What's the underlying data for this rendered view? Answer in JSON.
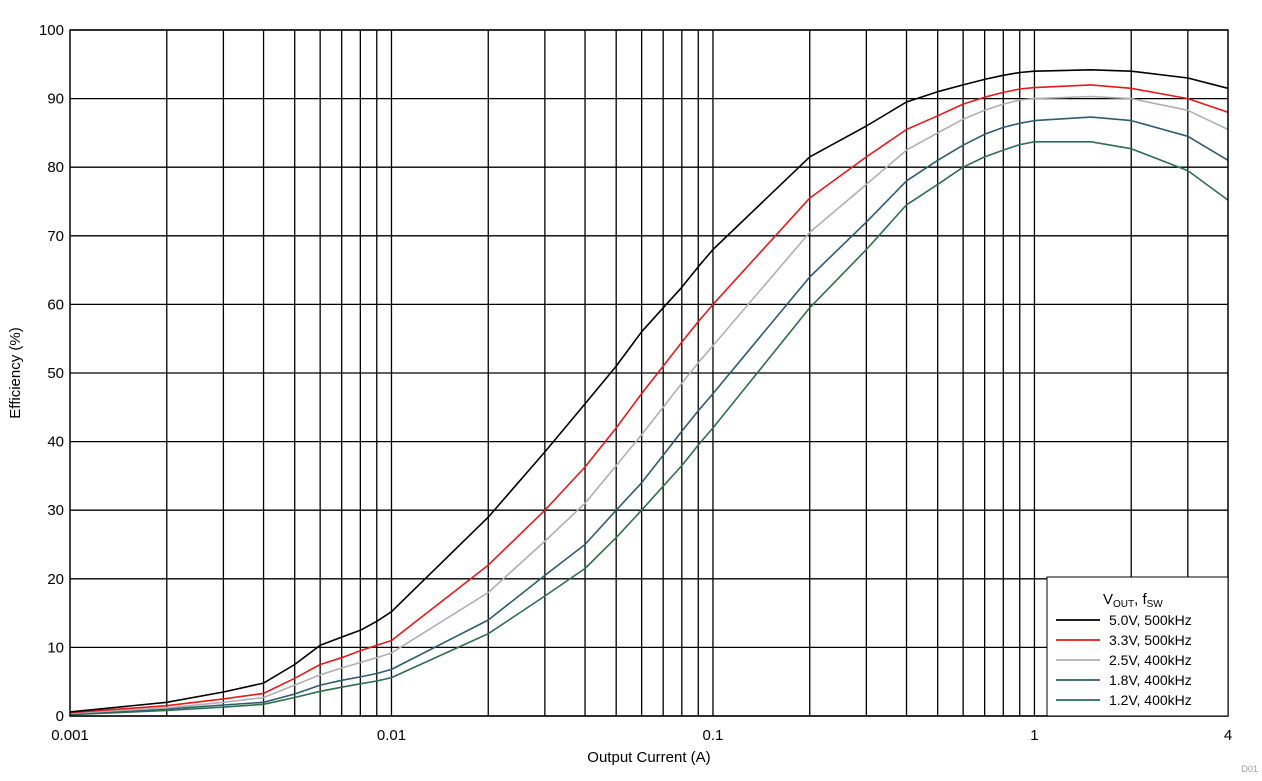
{
  "chart_data": {
    "type": "line",
    "title": "",
    "xlabel": "Output Current (A)",
    "ylabel": "Efficiency (%)",
    "x_scale": "log",
    "xlim": [
      0.001,
      4
    ],
    "ylim": [
      0,
      100
    ],
    "grid": true,
    "x_tick_labels": [
      {
        "value": 0.001,
        "label": "0.001"
      },
      {
        "value": 0.01,
        "label": "0.01"
      },
      {
        "value": 0.1,
        "label": "0.1"
      },
      {
        "value": 1,
        "label": "1"
      },
      {
        "value": 4,
        "label": "4"
      }
    ],
    "x_gridlines": [
      0.002,
      0.003,
      0.004,
      0.005,
      0.006,
      0.007,
      0.008,
      0.009,
      0.01,
      0.02,
      0.03,
      0.04,
      0.05,
      0.06,
      0.07,
      0.08,
      0.09,
      0.1,
      0.2,
      0.3,
      0.4,
      0.5,
      0.6,
      0.7,
      0.8,
      0.9,
      1,
      2,
      3
    ],
    "y_ticks": [
      0,
      10,
      20,
      30,
      40,
      50,
      60,
      70,
      80,
      90,
      100
    ],
    "legend": {
      "placement": "bottom-right",
      "title_main": "V",
      "title_sub1": "OUT",
      "title_mid": ", f",
      "title_sub2": "SW"
    },
    "series": [
      {
        "name": "5.0V, 500kHz",
        "color": "#000000",
        "x": [
          0.001,
          0.002,
          0.003,
          0.004,
          0.005,
          0.006,
          0.007,
          0.008,
          0.009,
          0.01,
          0.02,
          0.03,
          0.04,
          0.05,
          0.06,
          0.07,
          0.08,
          0.09,
          0.1,
          0.2,
          0.3,
          0.4,
          0.5,
          0.6,
          0.7,
          0.8,
          0.9,
          1,
          1.5,
          2,
          3,
          4
        ],
        "y": [
          0.6,
          2.0,
          3.5,
          4.8,
          7.5,
          10.3,
          11.5,
          12.5,
          13.8,
          15.2,
          29.0,
          38.5,
          45.5,
          51.0,
          56.0,
          59.5,
          62.5,
          65.5,
          68.0,
          81.5,
          86.0,
          89.5,
          91.0,
          92.0,
          92.8,
          93.4,
          93.8,
          94.0,
          94.2,
          94.0,
          93.0,
          91.5
        ]
      },
      {
        "name": "3.3V, 500kHz",
        "color": "#e41a1c",
        "x": [
          0.001,
          0.002,
          0.003,
          0.004,
          0.005,
          0.006,
          0.007,
          0.008,
          0.009,
          0.01,
          0.02,
          0.03,
          0.04,
          0.05,
          0.06,
          0.07,
          0.08,
          0.09,
          0.1,
          0.2,
          0.3,
          0.4,
          0.5,
          0.6,
          0.7,
          0.8,
          0.9,
          1,
          1.5,
          2,
          3,
          4
        ],
        "y": [
          0.5,
          1.5,
          2.5,
          3.3,
          5.5,
          7.5,
          8.5,
          9.5,
          10.3,
          11.0,
          22.0,
          30.0,
          36.3,
          42.0,
          47.0,
          51.0,
          54.5,
          57.5,
          60.0,
          75.5,
          81.5,
          85.5,
          87.5,
          89.2,
          90.2,
          90.9,
          91.4,
          91.6,
          92.0,
          91.5,
          90.0,
          88.0
        ]
      },
      {
        "name": "2.5V, 400kHz",
        "color": "#b0b0b0",
        "x": [
          0.001,
          0.002,
          0.003,
          0.004,
          0.005,
          0.006,
          0.007,
          0.008,
          0.009,
          0.01,
          0.02,
          0.03,
          0.04,
          0.05,
          0.06,
          0.07,
          0.08,
          0.09,
          0.1,
          0.2,
          0.3,
          0.4,
          0.5,
          0.6,
          0.7,
          0.8,
          0.9,
          1,
          1.5,
          2,
          3,
          4
        ],
        "y": [
          0.4,
          1.2,
          2.0,
          2.7,
          4.5,
          6.0,
          7.0,
          7.8,
          8.5,
          9.2,
          18.0,
          25.5,
          31.0,
          36.5,
          41.0,
          45.0,
          48.5,
          51.5,
          54.0,
          70.5,
          77.5,
          82.5,
          85.0,
          87.0,
          88.3,
          89.2,
          89.8,
          90.0,
          90.3,
          90.0,
          88.3,
          85.5
        ]
      },
      {
        "name": "1.8V, 400kHz",
        "color": "#2f5c6e",
        "x": [
          0.001,
          0.002,
          0.003,
          0.004,
          0.005,
          0.006,
          0.007,
          0.008,
          0.009,
          0.01,
          0.02,
          0.03,
          0.04,
          0.05,
          0.06,
          0.07,
          0.08,
          0.09,
          0.1,
          0.2,
          0.3,
          0.4,
          0.5,
          0.6,
          0.7,
          0.8,
          0.9,
          1,
          1.5,
          2,
          3,
          4
        ],
        "y": [
          0.3,
          1.0,
          1.6,
          2.0,
          3.2,
          4.5,
          5.2,
          5.7,
          6.2,
          6.8,
          14.0,
          20.5,
          25.0,
          30.0,
          34.0,
          38.0,
          41.5,
          44.5,
          47.0,
          64.0,
          72.0,
          78.0,
          81.0,
          83.2,
          84.8,
          85.8,
          86.4,
          86.8,
          87.3,
          86.8,
          84.5,
          81.0
        ]
      },
      {
        "name": "1.2V, 400kHz",
        "color": "#2e6f4e",
        "x": [
          0.001,
          0.002,
          0.003,
          0.004,
          0.005,
          0.006,
          0.007,
          0.008,
          0.009,
          0.01,
          0.02,
          0.03,
          0.04,
          0.05,
          0.06,
          0.07,
          0.08,
          0.09,
          0.1,
          0.2,
          0.3,
          0.4,
          0.5,
          0.6,
          0.7,
          0.8,
          0.9,
          1,
          1.5,
          2,
          3,
          4
        ],
        "y": [
          0.2,
          0.8,
          1.3,
          1.7,
          2.7,
          3.6,
          4.2,
          4.7,
          5.1,
          5.6,
          12.0,
          17.5,
          21.5,
          26.0,
          30.0,
          33.5,
          36.5,
          39.5,
          42.0,
          59.5,
          68.0,
          74.5,
          77.5,
          80.0,
          81.5,
          82.5,
          83.3,
          83.7,
          83.7,
          82.7,
          79.5,
          75.2
        ]
      }
    ],
    "footer_mark": "D01"
  }
}
